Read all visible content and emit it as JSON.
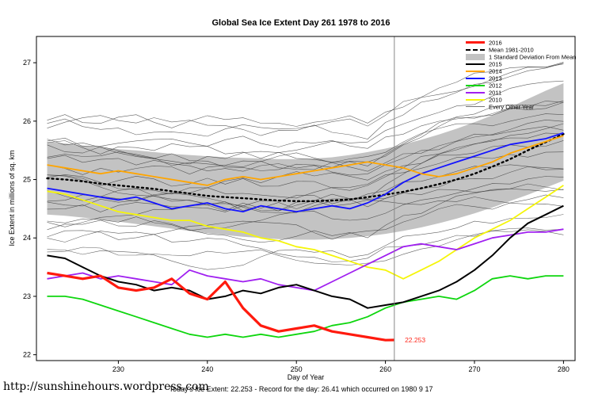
{
  "footer": {
    "url": "http://sunshinehours.wordpress.com",
    "caption": "Today's Ice Extent: 22.253  - Record for the day: 26.41 which occurred on 1980 9 17"
  },
  "chart_data": {
    "type": "line",
    "title": "Global Sea Ice Extent Day 261 1978 to 2016",
    "xlabel": "Day of Year",
    "ylabel": "Ice Extent in millions of sq. km",
    "xlim": [
      220.8,
      281.3
    ],
    "ylim": [
      21.9,
      27.45
    ],
    "xticks": [
      230,
      240,
      250,
      260,
      270,
      280
    ],
    "yticks": [
      22,
      23,
      24,
      25,
      26,
      27
    ],
    "grid": false,
    "vline_x": 261,
    "annotation": {
      "text": "22.253",
      "x": 262,
      "y": 22.253,
      "color": "#ff2a1e"
    },
    "x": [
      222,
      224,
      226,
      228,
      230,
      232,
      234,
      236,
      238,
      240,
      242,
      244,
      246,
      248,
      250,
      252,
      254,
      256,
      258,
      260,
      262,
      264,
      266,
      268,
      270,
      272,
      274,
      276,
      278,
      280
    ],
    "band": {
      "name": "1 Standard Deviation From Mean",
      "color": "#c3c3c3",
      "upper": [
        25.64,
        25.62,
        25.58,
        25.55,
        25.52,
        25.5,
        25.47,
        25.44,
        25.42,
        25.4,
        25.38,
        25.37,
        25.36,
        25.35,
        25.35,
        25.36,
        25.38,
        25.42,
        25.47,
        25.53,
        25.6,
        25.68,
        25.77,
        25.87,
        25.98,
        26.1,
        26.24,
        26.38,
        26.52,
        26.65
      ],
      "lower": [
        24.4,
        24.38,
        24.35,
        24.31,
        24.28,
        24.24,
        24.2,
        24.16,
        24.12,
        24.08,
        24.05,
        24.02,
        24.0,
        23.98,
        23.97,
        23.97,
        23.98,
        24.0,
        24.03,
        24.07,
        24.12,
        24.18,
        24.25,
        24.33,
        24.42,
        24.52,
        24.63,
        24.74,
        24.86,
        24.98
      ]
    },
    "mean": {
      "name": "Mean 1981-2010",
      "color": "#000000",
      "style": "dashed",
      "values": [
        25.02,
        25.0,
        24.97,
        24.93,
        24.9,
        24.87,
        24.84,
        24.8,
        24.76,
        24.72,
        24.7,
        24.68,
        24.66,
        24.64,
        24.63,
        24.63,
        24.64,
        24.66,
        24.7,
        24.74,
        24.79,
        24.85,
        24.92,
        25.0,
        25.1,
        25.22,
        25.35,
        25.5,
        25.64,
        25.78
      ]
    },
    "series": [
      {
        "name": "2016",
        "color": "#ff1a0e",
        "width": 3.2,
        "x": [
          222,
          224,
          226,
          228,
          230,
          232,
          234,
          236,
          238,
          240,
          242,
          244,
          246,
          248,
          250,
          252,
          254,
          256,
          258,
          260,
          261
        ],
        "values": [
          23.4,
          23.35,
          23.3,
          23.35,
          23.15,
          23.1,
          23.15,
          23.3,
          23.05,
          22.95,
          23.25,
          22.8,
          22.5,
          22.4,
          22.45,
          22.5,
          22.4,
          22.35,
          22.3,
          22.25,
          22.253
        ]
      },
      {
        "name": "2015",
        "color": "#000000",
        "width": 2,
        "values": [
          23.7,
          23.65,
          23.5,
          23.35,
          23.25,
          23.2,
          23.1,
          23.15,
          23.1,
          22.95,
          23.0,
          23.1,
          23.05,
          23.15,
          23.2,
          23.1,
          23.0,
          22.95,
          22.8,
          22.85,
          22.9,
          23.0,
          23.1,
          23.25,
          23.45,
          23.7,
          24.0,
          24.25,
          24.4,
          24.55
        ]
      },
      {
        "name": "2014",
        "color": "#ffa500",
        "width": 1.8,
        "values": [
          25.25,
          25.2,
          25.15,
          25.1,
          25.15,
          25.1,
          25.05,
          25.0,
          24.95,
          24.9,
          25.0,
          25.05,
          25.0,
          25.05,
          25.1,
          25.15,
          25.2,
          25.25,
          25.3,
          25.25,
          25.2,
          25.1,
          25.05,
          25.1,
          25.2,
          25.3,
          25.45,
          25.55,
          25.65,
          25.75
        ]
      },
      {
        "name": "2013",
        "color": "#1414ff",
        "width": 1.8,
        "values": [
          24.85,
          24.8,
          24.75,
          24.7,
          24.65,
          24.7,
          24.6,
          24.5,
          24.55,
          24.6,
          24.5,
          24.45,
          24.55,
          24.5,
          24.45,
          24.5,
          24.55,
          24.5,
          24.6,
          24.75,
          24.95,
          25.1,
          25.2,
          25.3,
          25.4,
          25.5,
          25.6,
          25.65,
          25.7,
          25.8
        ]
      },
      {
        "name": "2012",
        "color": "#0ed60e",
        "width": 1.8,
        "values": [
          23.0,
          23.0,
          22.95,
          22.85,
          22.75,
          22.65,
          22.55,
          22.45,
          22.35,
          22.3,
          22.35,
          22.3,
          22.35,
          22.3,
          22.35,
          22.4,
          22.5,
          22.55,
          22.65,
          22.8,
          22.9,
          22.95,
          23.0,
          22.95,
          23.1,
          23.3,
          23.35,
          23.3,
          23.35,
          23.35
        ]
      },
      {
        "name": "2011",
        "color": "#a020f0",
        "width": 1.8,
        "values": [
          23.3,
          23.35,
          23.4,
          23.3,
          23.35,
          23.3,
          23.25,
          23.2,
          23.45,
          23.35,
          23.3,
          23.25,
          23.3,
          23.2,
          23.15,
          23.1,
          23.25,
          23.4,
          23.55,
          23.7,
          23.85,
          23.9,
          23.85,
          23.8,
          23.9,
          24.0,
          24.05,
          24.1,
          24.1,
          24.15
        ]
      },
      {
        "name": "2010",
        "color": "#f5f50a",
        "width": 1.8,
        "values": [
          24.8,
          24.75,
          24.65,
          24.55,
          24.45,
          24.4,
          24.35,
          24.3,
          24.3,
          24.2,
          24.15,
          24.1,
          24.0,
          23.95,
          23.85,
          23.8,
          23.7,
          23.6,
          23.5,
          23.45,
          23.3,
          23.45,
          23.6,
          23.8,
          24.0,
          24.15,
          24.3,
          24.5,
          24.7,
          24.9
        ]
      }
    ],
    "background": {
      "name": "Every Other Year",
      "color": "#3a3a3a",
      "width": 0.6,
      "opacity": 0.8,
      "count": 24,
      "seed": 11,
      "base_range": [
        23.75,
        26.05
      ]
    },
    "legend": {
      "position": "top-right",
      "entries": [
        {
          "label": "2016",
          "color": "#ff1a0e",
          "type": "line-thick"
        },
        {
          "label": "Mean 1981-2010",
          "color": "#000000",
          "type": "line-dashed"
        },
        {
          "label": "1 Standard Deviation From Mean",
          "color": "#c3c3c3",
          "type": "box"
        },
        {
          "label": "2015",
          "color": "#000000",
          "type": "line"
        },
        {
          "label": "2014",
          "color": "#ffa500",
          "type": "line"
        },
        {
          "label": "2013",
          "color": "#1414ff",
          "type": "line"
        },
        {
          "label": "2012",
          "color": "#0ed60e",
          "type": "line"
        },
        {
          "label": "2011",
          "color": "#a020f0",
          "type": "line"
        },
        {
          "label": "2010",
          "color": "#f5f50a",
          "type": "line"
        },
        {
          "label": "Every Other Year",
          "color": "#777777",
          "type": "line-thin"
        }
      ]
    }
  }
}
